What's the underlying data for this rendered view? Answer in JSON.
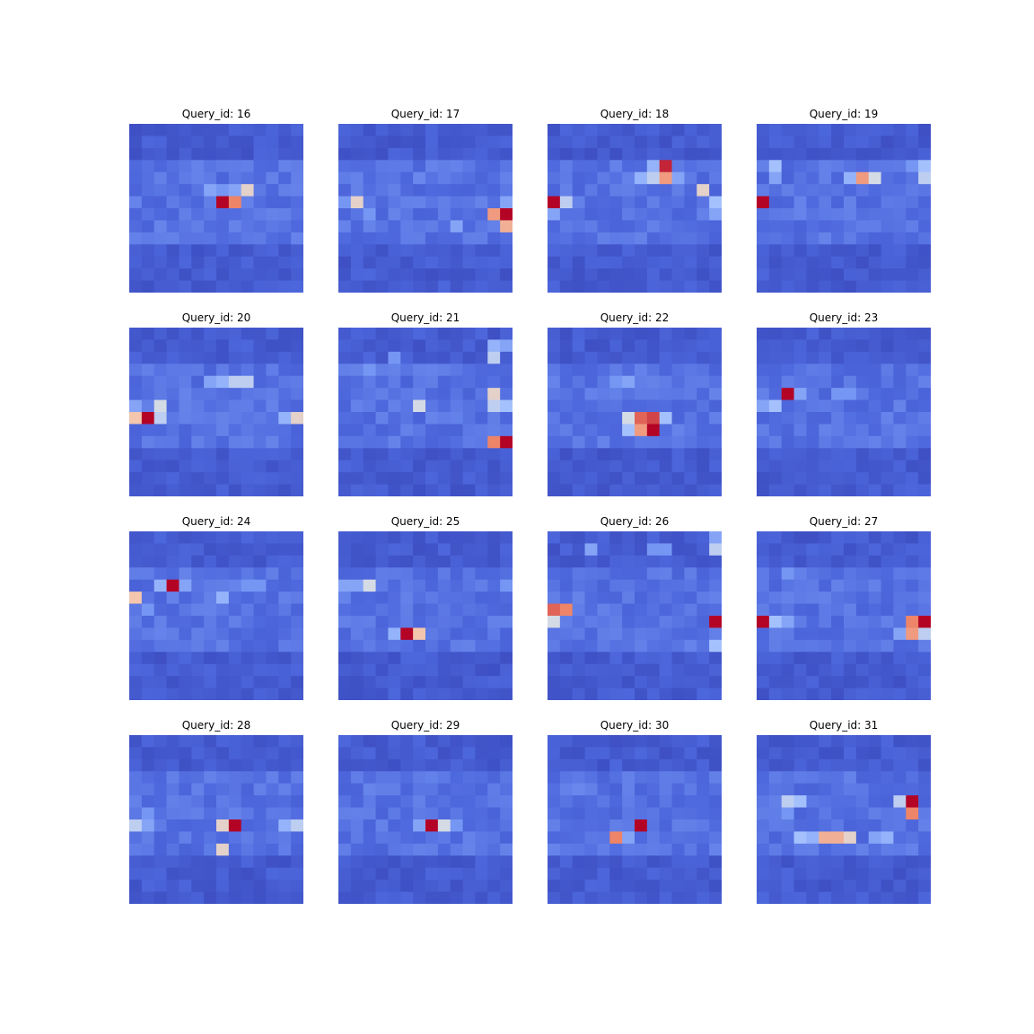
{
  "chart_data": [
    {
      "type": "heatmap",
      "title": "Query_id: 16",
      "shape": [
        14,
        14
      ],
      "hot": [
        [
          6,
          7,
          1.0
        ],
        [
          6,
          8,
          0.8
        ],
        [
          5,
          9,
          0.6
        ],
        [
          5,
          6,
          0.35
        ],
        [
          5,
          7,
          0.3
        ],
        [
          5,
          8,
          0.35
        ]
      ]
    },
    {
      "type": "heatmap",
      "title": "Query_id: 17",
      "shape": [
        14,
        14
      ],
      "hot": [
        [
          7,
          13,
          1.0
        ],
        [
          7,
          12,
          0.75
        ],
        [
          8,
          13,
          0.7
        ],
        [
          6,
          1,
          0.6
        ],
        [
          6,
          0,
          0.3
        ],
        [
          7,
          2,
          0.3
        ],
        [
          8,
          9,
          0.35
        ],
        [
          6,
          13,
          0.35
        ],
        [
          4,
          6,
          0.25
        ]
      ]
    },
    {
      "type": "heatmap",
      "title": "Query_id: 18",
      "shape": [
        14,
        14
      ],
      "hot": [
        [
          3,
          9,
          0.95
        ],
        [
          4,
          9,
          0.75
        ],
        [
          4,
          8,
          0.5
        ],
        [
          4,
          7,
          0.4
        ],
        [
          6,
          0,
          1.0
        ],
        [
          6,
          1,
          0.5
        ],
        [
          7,
          0,
          0.35
        ],
        [
          5,
          12,
          0.6
        ],
        [
          6,
          13,
          0.45
        ],
        [
          7,
          13,
          0.35
        ],
        [
          3,
          8,
          0.4
        ],
        [
          4,
          10,
          0.35
        ]
      ]
    },
    {
      "type": "heatmap",
      "title": "Query_id: 19",
      "shape": [
        14,
        14
      ],
      "hot": [
        [
          6,
          0,
          1.0
        ],
        [
          4,
          8,
          0.75
        ],
        [
          4,
          9,
          0.55
        ],
        [
          4,
          7,
          0.4
        ],
        [
          3,
          13,
          0.45
        ],
        [
          4,
          13,
          0.5
        ],
        [
          3,
          1,
          0.45
        ],
        [
          4,
          1,
          0.35
        ],
        [
          3,
          12,
          0.3
        ]
      ]
    },
    {
      "type": "heatmap",
      "title": "Query_id: 20",
      "shape": [
        14,
        14
      ],
      "hot": [
        [
          7,
          1,
          1.0
        ],
        [
          7,
          0,
          0.65
        ],
        [
          6,
          2,
          0.55
        ],
        [
          7,
          2,
          0.5
        ],
        [
          6,
          0,
          0.35
        ],
        [
          4,
          8,
          0.5
        ],
        [
          4,
          9,
          0.5
        ],
        [
          4,
          7,
          0.4
        ],
        [
          4,
          6,
          0.35
        ],
        [
          7,
          13,
          0.6
        ],
        [
          7,
          12,
          0.4
        ]
      ]
    },
    {
      "type": "heatmap",
      "title": "Query_id: 21",
      "shape": [
        14,
        14
      ],
      "hot": [
        [
          9,
          13,
          1.0
        ],
        [
          9,
          12,
          0.8
        ],
        [
          5,
          12,
          0.6
        ],
        [
          2,
          12,
          0.5
        ],
        [
          1,
          12,
          0.4
        ],
        [
          1,
          13,
          0.35
        ],
        [
          6,
          12,
          0.5
        ],
        [
          6,
          13,
          0.45
        ],
        [
          6,
          6,
          0.55
        ],
        [
          3,
          2,
          0.3
        ],
        [
          2,
          4,
          0.3
        ]
      ]
    },
    {
      "type": "heatmap",
      "title": "Query_id: 22",
      "shape": [
        14,
        14
      ],
      "hot": [
        [
          8,
          8,
          1.0
        ],
        [
          7,
          8,
          0.9
        ],
        [
          7,
          7,
          0.85
        ],
        [
          8,
          7,
          0.75
        ],
        [
          7,
          6,
          0.55
        ],
        [
          8,
          6,
          0.45
        ],
        [
          7,
          9,
          0.45
        ],
        [
          4,
          6,
          0.35
        ],
        [
          4,
          5,
          0.3
        ]
      ]
    },
    {
      "type": "heatmap",
      "title": "Query_id: 23",
      "shape": [
        14,
        14
      ],
      "hot": [
        [
          5,
          2,
          1.0
        ],
        [
          6,
          1,
          0.45
        ],
        [
          6,
          0,
          0.35
        ],
        [
          5,
          3,
          0.35
        ],
        [
          5,
          6,
          0.3
        ],
        [
          5,
          7,
          0.3
        ]
      ]
    },
    {
      "type": "heatmap",
      "title": "Query_id: 24",
      "shape": [
        14,
        14
      ],
      "hot": [
        [
          4,
          3,
          1.0
        ],
        [
          5,
          0,
          0.65
        ],
        [
          5,
          7,
          0.4
        ],
        [
          4,
          2,
          0.4
        ],
        [
          4,
          4,
          0.35
        ],
        [
          6,
          1,
          0.3
        ],
        [
          4,
          9,
          0.3
        ],
        [
          4,
          10,
          0.3
        ]
      ]
    },
    {
      "type": "heatmap",
      "title": "Query_id: 25",
      "shape": [
        14,
        14
      ],
      "hot": [
        [
          8,
          5,
          1.0
        ],
        [
          8,
          6,
          0.65
        ],
        [
          4,
          2,
          0.55
        ],
        [
          4,
          0,
          0.35
        ],
        [
          4,
          1,
          0.35
        ],
        [
          8,
          4,
          0.4
        ],
        [
          4,
          13,
          0.3
        ]
      ]
    },
    {
      "type": "heatmap",
      "title": "Query_id: 26",
      "shape": [
        14,
        14
      ],
      "hot": [
        [
          6,
          0,
          0.85
        ],
        [
          6,
          1,
          0.8
        ],
        [
          7,
          0,
          0.55
        ],
        [
          7,
          13,
          1.0
        ],
        [
          1,
          13,
          0.5
        ],
        [
          9,
          13,
          0.45
        ],
        [
          0,
          13,
          0.35
        ],
        [
          1,
          3,
          0.35
        ],
        [
          1,
          8,
          0.3
        ],
        [
          1,
          9,
          0.3
        ]
      ]
    },
    {
      "type": "heatmap",
      "title": "Query_id: 27",
      "shape": [
        14,
        14
      ],
      "hot": [
        [
          7,
          0,
          1.0
        ],
        [
          7,
          13,
          1.0
        ],
        [
          7,
          12,
          0.8
        ],
        [
          8,
          12,
          0.75
        ],
        [
          8,
          13,
          0.5
        ],
        [
          7,
          1,
          0.45
        ],
        [
          7,
          2,
          0.35
        ],
        [
          8,
          11,
          0.35
        ],
        [
          3,
          2,
          0.3
        ]
      ]
    },
    {
      "type": "heatmap",
      "title": "Query_id: 28",
      "shape": [
        14,
        14
      ],
      "hot": [
        [
          7,
          8,
          1.0
        ],
        [
          7,
          7,
          0.6
        ],
        [
          9,
          7,
          0.6
        ],
        [
          7,
          0,
          0.5
        ],
        [
          7,
          13,
          0.5
        ],
        [
          7,
          12,
          0.4
        ],
        [
          6,
          1,
          0.3
        ],
        [
          7,
          1,
          0.35
        ]
      ]
    },
    {
      "type": "heatmap",
      "title": "Query_id: 29",
      "shape": [
        14,
        14
      ],
      "hot": [
        [
          7,
          7,
          1.0
        ],
        [
          7,
          8,
          0.55
        ],
        [
          7,
          6,
          0.35
        ],
        [
          7,
          9,
          0.3
        ]
      ]
    },
    {
      "type": "heatmap",
      "title": "Query_id: 30",
      "shape": [
        14,
        14
      ],
      "hot": [
        [
          7,
          7,
          1.0
        ],
        [
          8,
          5,
          0.8
        ],
        [
          8,
          6,
          0.35
        ],
        [
          4,
          2,
          0.25
        ]
      ]
    },
    {
      "type": "heatmap",
      "title": "Query_id: 31",
      "shape": [
        14,
        14
      ],
      "hot": [
        [
          5,
          12,
          1.0
        ],
        [
          6,
          12,
          0.8
        ],
        [
          5,
          11,
          0.5
        ],
        [
          5,
          2,
          0.5
        ],
        [
          5,
          3,
          0.45
        ],
        [
          8,
          5,
          0.7
        ],
        [
          8,
          6,
          0.7
        ],
        [
          8,
          7,
          0.6
        ],
        [
          8,
          3,
          0.45
        ],
        [
          8,
          4,
          0.4
        ],
        [
          8,
          10,
          0.4
        ],
        [
          6,
          2,
          0.3
        ],
        [
          8,
          9,
          0.35
        ]
      ]
    }
  ]
}
